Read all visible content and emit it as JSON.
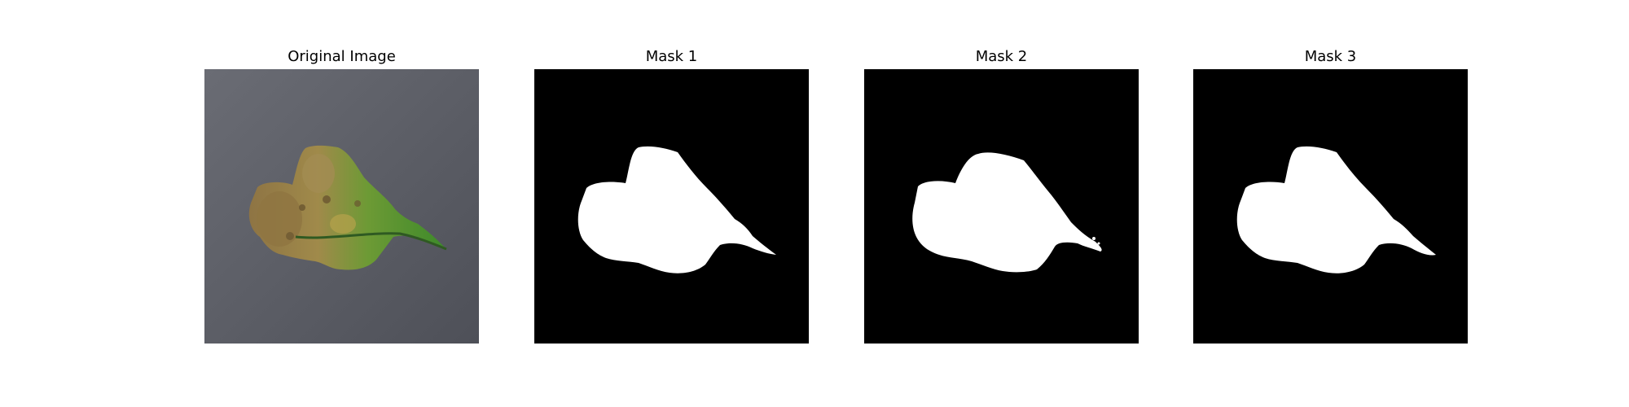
{
  "figure": {
    "panels": [
      {
        "title": "Original Image",
        "content": "leaf photo on gray background"
      },
      {
        "title": "Mask 1",
        "content": "binary segmentation mask"
      },
      {
        "title": "Mask 2",
        "content": "binary segmentation mask"
      },
      {
        "title": "Mask 3",
        "content": "binary segmentation mask"
      }
    ],
    "colors": {
      "background": "#ffffff",
      "mask_background": "#000000",
      "mask_foreground": "#ffffff",
      "surface_gray": "#5f6168",
      "leaf_green": "#4d9a2e",
      "leaf_brown": "#9c7f45"
    }
  }
}
